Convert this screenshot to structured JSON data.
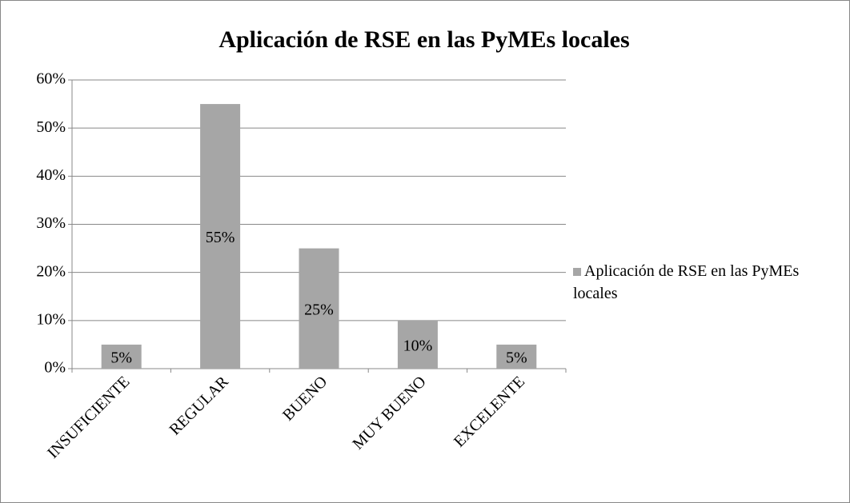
{
  "chart_data": {
    "type": "bar",
    "title": "Aplicación de RSE en las PyMEs locales",
    "categories": [
      "INSUFICIENTE",
      "REGULAR",
      "BUENO",
      "MUY BUENO",
      "EXCELENTE"
    ],
    "series": [
      {
        "name": "Aplicación de RSE en las PyMEs locales",
        "color": "#a6a6a6",
        "values": [
          5,
          55,
          25,
          10,
          5
        ],
        "value_labels": [
          "5%",
          "55%",
          "25%",
          "10%",
          "5%"
        ]
      }
    ],
    "ylim": [
      0,
      60
    ],
    "yticks": [
      {
        "value": 0,
        "label": "0%"
      },
      {
        "value": 10,
        "label": "10%"
      },
      {
        "value": 20,
        "label": "20%"
      },
      {
        "value": 30,
        "label": "30%"
      },
      {
        "value": 40,
        "label": "40%"
      },
      {
        "value": 50,
        "label": "50%"
      },
      {
        "value": 60,
        "label": "60%"
      }
    ],
    "grid": true,
    "legend": "right"
  }
}
